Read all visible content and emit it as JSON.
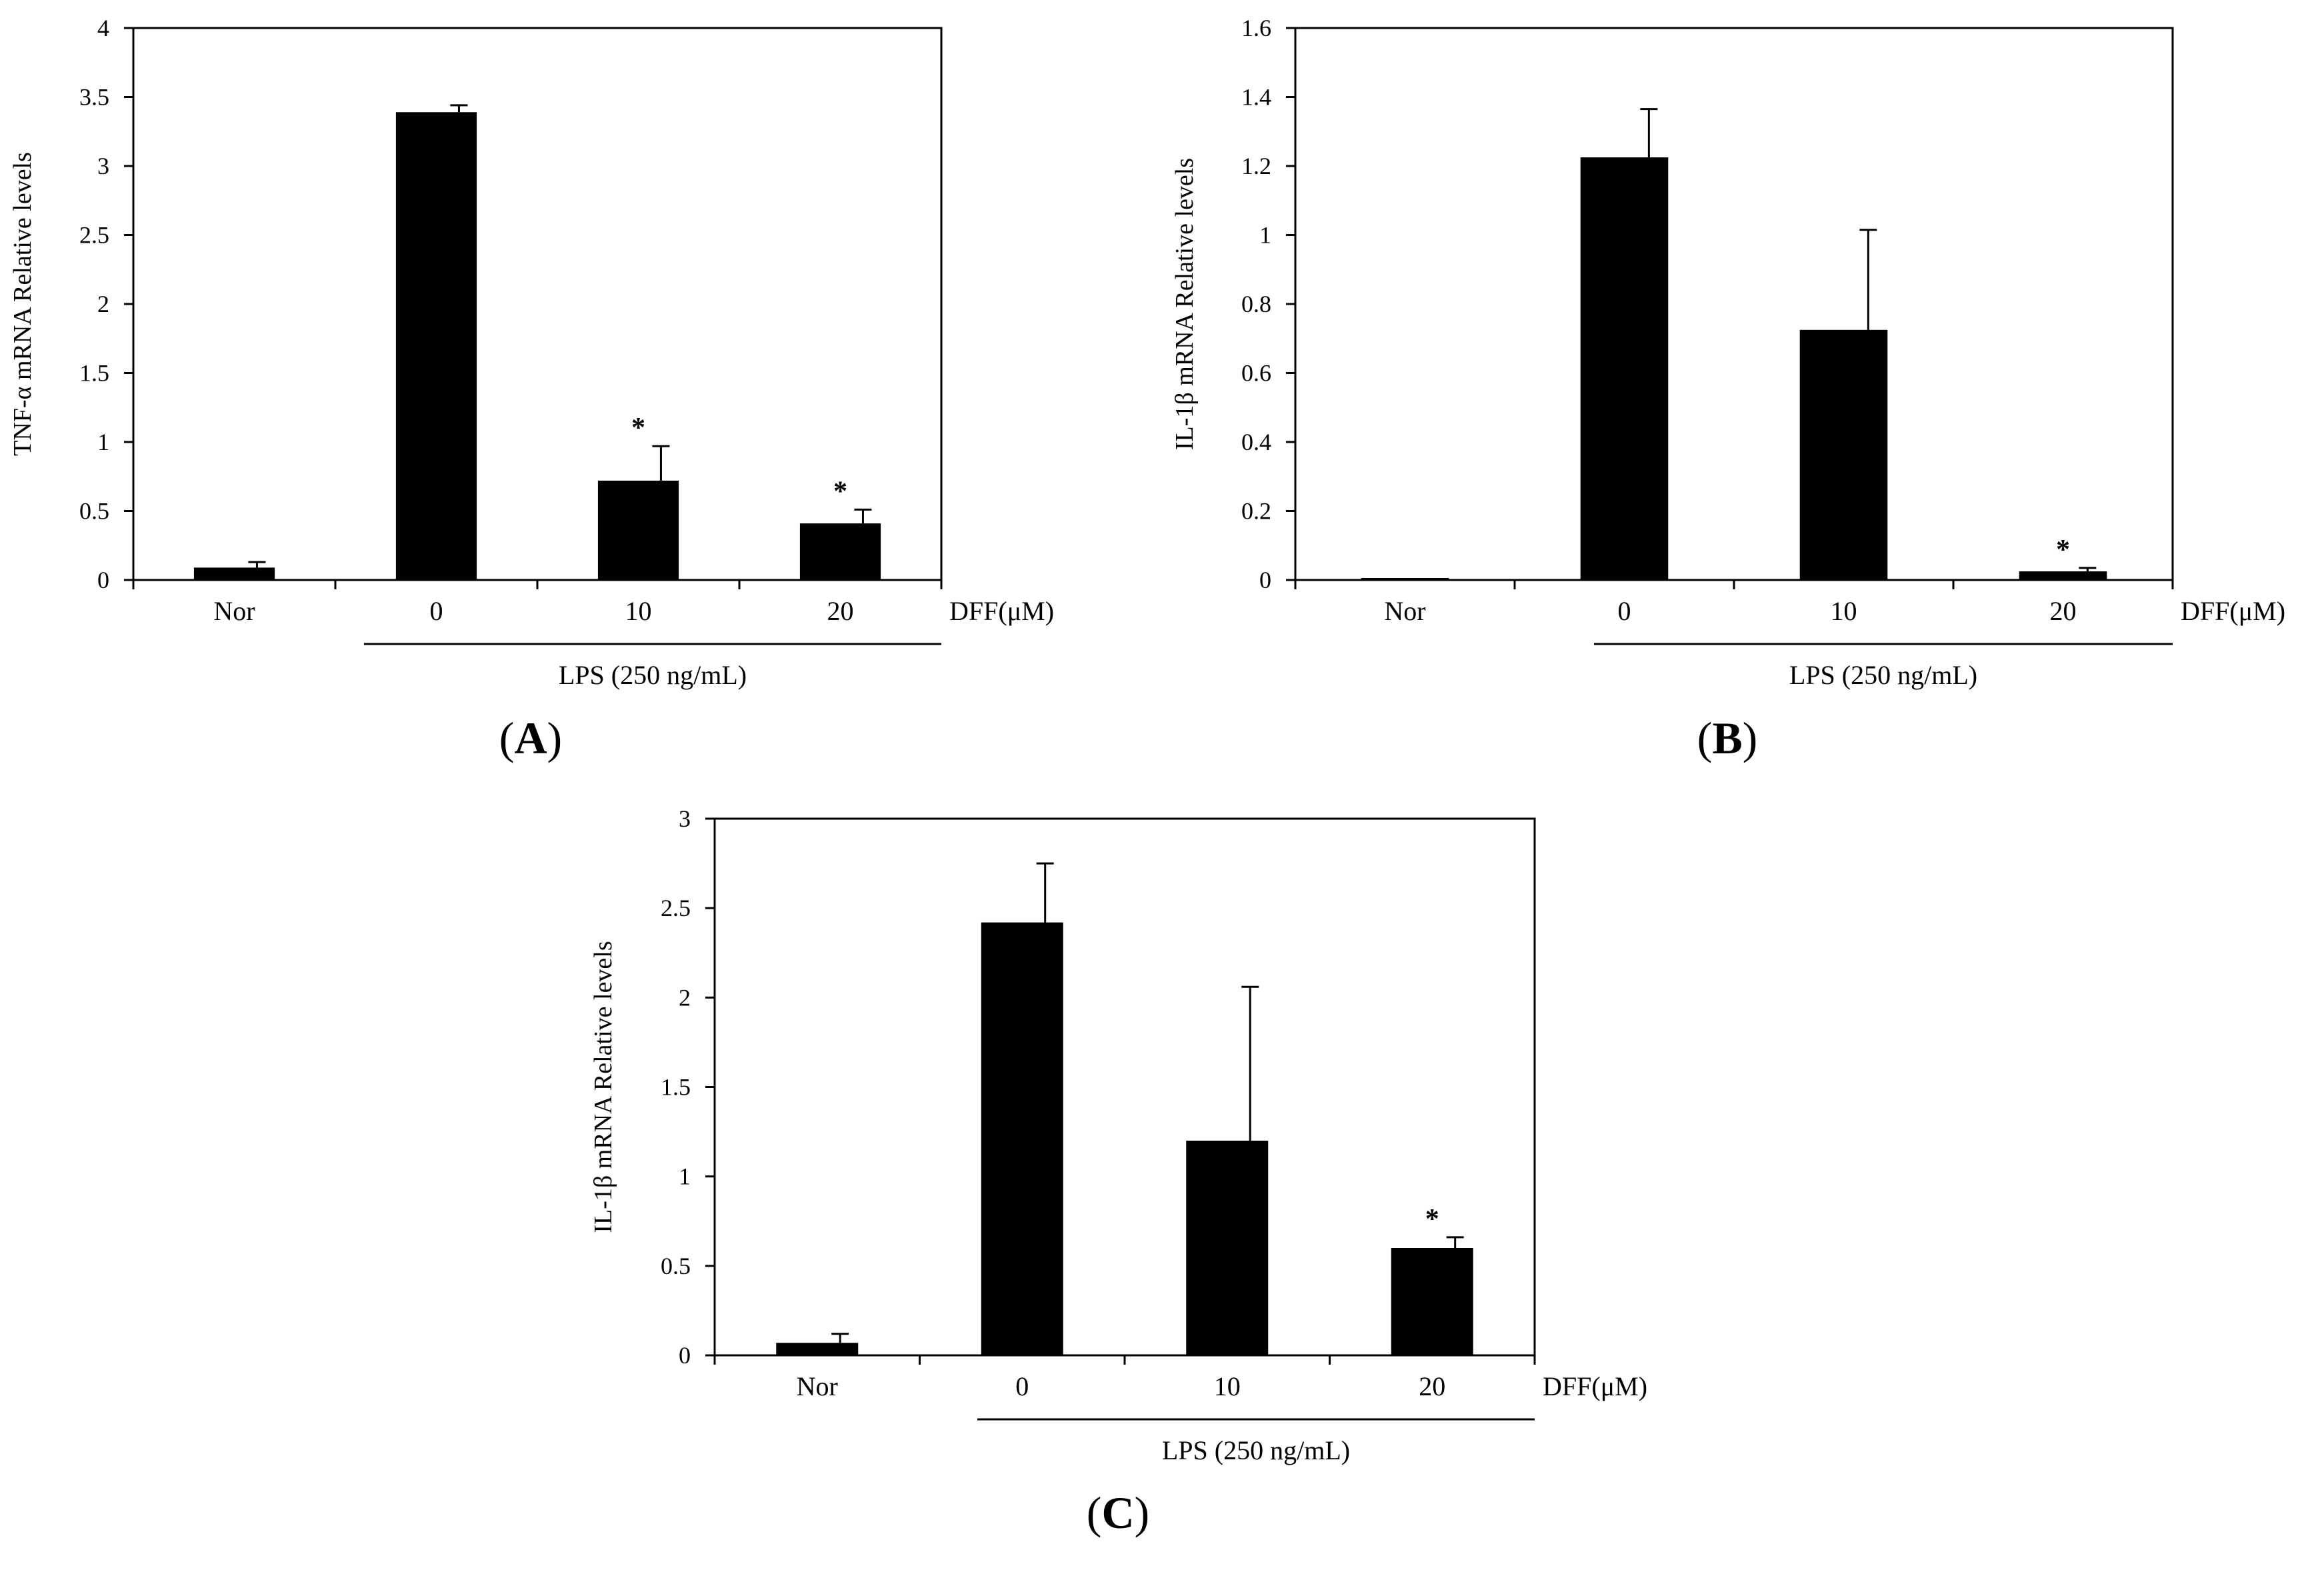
{
  "chart_data": [
    {
      "type": "bar",
      "panel_label": "(A)",
      "ylabel": "TNF-α mRNA Relative  levels",
      "ylim": [
        0,
        4
      ],
      "yticks": [
        "0",
        "0.5",
        "1",
        "1.5",
        "2",
        "2.5",
        "3",
        "3.5",
        "4"
      ],
      "categories": [
        "Nor",
        "0",
        "10",
        "20"
      ],
      "values": [
        0.09,
        3.39,
        0.72,
        0.41
      ],
      "errors": [
        0.04,
        0.05,
        0.25,
        0.1
      ],
      "significance": [
        "",
        "",
        "*",
        "*"
      ],
      "treatment_label": "DFF(μM)",
      "group_label": "LPS (250 ng/mL)",
      "grid": false
    },
    {
      "type": "bar",
      "panel_label": "(B)",
      "ylabel": "IL-1β  mRNA Relative  levels",
      "ylim": [
        0,
        1.6
      ],
      "yticks": [
        "0",
        "0.2",
        "0.4",
        "0.6",
        "0.8",
        "1",
        "1.2",
        "1.4",
        "1.6"
      ],
      "categories": [
        "Nor",
        "0",
        "10",
        "20"
      ],
      "values": [
        0.005,
        1.225,
        0.725,
        0.025
      ],
      "errors": [
        0.0,
        0.14,
        0.29,
        0.01
      ],
      "significance": [
        "",
        "",
        "",
        "*"
      ],
      "treatment_label": "DFF(μM)",
      "group_label": "LPS (250 ng/mL)",
      "grid": false
    },
    {
      "type": "bar",
      "panel_label": "(C)",
      "ylabel": "IL-1β  mRNA Relative  levels",
      "ylim": [
        0,
        3
      ],
      "yticks": [
        "0",
        "0.5",
        "1",
        "1.5",
        "2",
        "2.5",
        "3"
      ],
      "categories": [
        "Nor",
        "0",
        "10",
        "20"
      ],
      "values": [
        0.07,
        2.42,
        1.2,
        0.6
      ],
      "errors": [
        0.05,
        0.33,
        0.86,
        0.06
      ],
      "significance": [
        "",
        "",
        "",
        "*"
      ],
      "treatment_label": "DFF(μM)",
      "group_label": "LPS (250 ng/mL)",
      "grid": false
    }
  ],
  "colors": {
    "bar": "#000000",
    "axis": "#000000",
    "background": "#ffffff"
  }
}
